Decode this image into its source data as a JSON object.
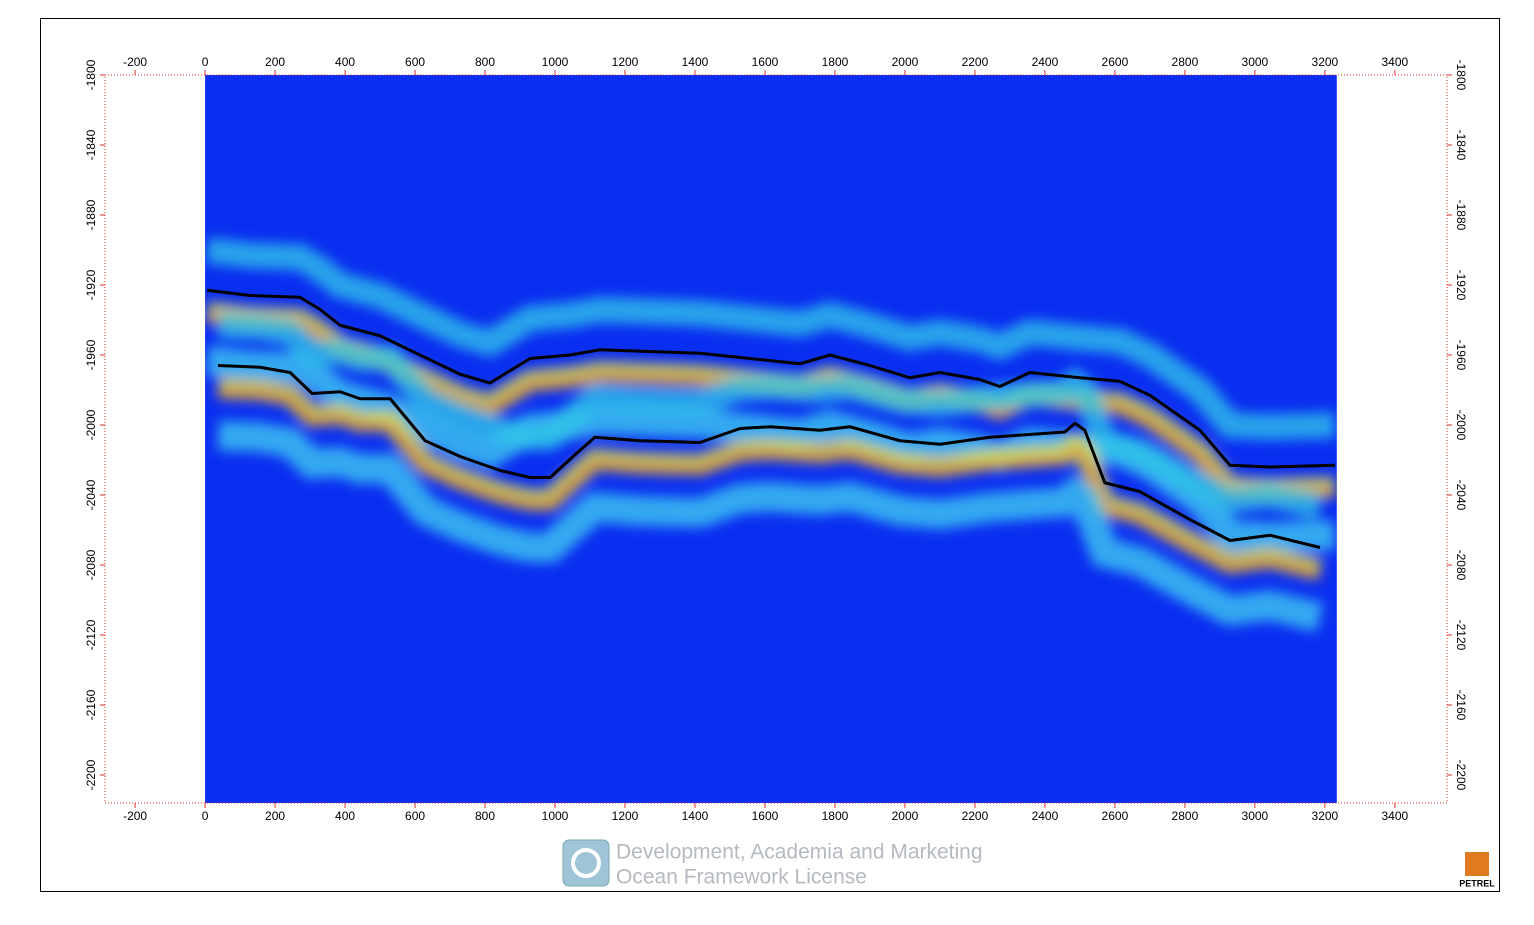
{
  "chart_data": {
    "type": "line",
    "xlim": [
      -286,
      3549
    ],
    "ylim": [
      -2216,
      -1800
    ],
    "xticks": [
      -200,
      0,
      200,
      400,
      600,
      800,
      1000,
      1200,
      1400,
      1600,
      1800,
      2000,
      2200,
      2400,
      2600,
      2800,
      3000,
      3200,
      3400
    ],
    "yticks": [
      -1800,
      -1840,
      -1880,
      -1920,
      -1960,
      -2000,
      -2040,
      -2080,
      -2120,
      -2160,
      -2200
    ],
    "section_x": [
      0,
      3234
    ],
    "section_color": "#0a2ef0",
    "series": [
      {
        "color": "#000000",
        "x": [
          6,
          129,
          271,
          329,
          386,
          500,
          614,
          729,
          814,
          871,
          929,
          1043,
          1129,
          1414,
          1700,
          1786,
          1900,
          2014,
          2100,
          2214,
          2271,
          2357,
          2500,
          2614,
          2700,
          2843,
          2929,
          3043,
          3229
        ],
        "values": [
          -1923,
          -1926,
          -1927,
          -1934,
          -1943,
          -1949,
          -1960,
          -1971,
          -1976,
          -1969,
          -1962,
          -1960,
          -1957,
          -1959,
          -1965,
          -1960,
          -1966,
          -1973,
          -1970,
          -1974,
          -1978,
          -1970,
          -1973,
          -1975,
          -1983,
          -2003,
          -2023,
          -2024,
          -2023
        ]
      },
      {
        "color": "#000000",
        "x": [
          37,
          157,
          243,
          306,
          386,
          443,
          529,
          629,
          729,
          843,
          929,
          986,
          1057,
          1114,
          1243,
          1414,
          1529,
          1614,
          1757,
          1843,
          1986,
          2100,
          2243,
          2386,
          2457,
          2486,
          2514,
          2571,
          2671,
          2814,
          2929,
          3043,
          3186
        ],
        "values": [
          -1966,
          -1967,
          -1970,
          -1982,
          -1981,
          -1985,
          -1985,
          -2009,
          -2018,
          -2026,
          -2030,
          -2030,
          -2017,
          -2007,
          -2009,
          -2010,
          -2002,
          -2001,
          -2003,
          -2001,
          -2009,
          -2011,
          -2007,
          -2005,
          -2004,
          -1999,
          -2003,
          -2033,
          -2038,
          -2054,
          -2066,
          -2063,
          -2070
        ]
      }
    ]
  },
  "watermark": {
    "line1": "Development, Academia and Marketing",
    "line2": "Ocean Framework License"
  },
  "logo": "PETREL"
}
